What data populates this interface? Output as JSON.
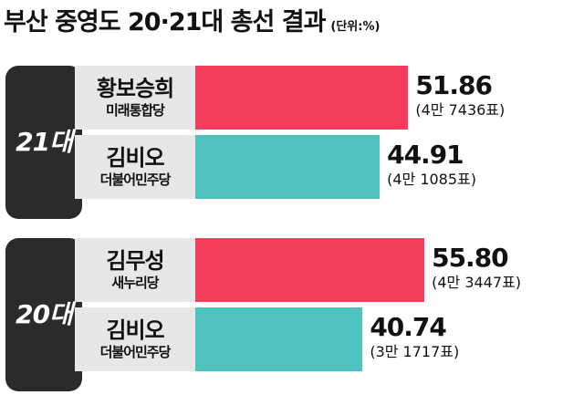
{
  "title": "부산 중영도 20·21대 총선 결과",
  "unit": "(단위:%)",
  "colors": {
    "winner": "#f23d5c",
    "loser": "#4fc1bf",
    "year_tab": "#2b2b2b",
    "name_bg": "#e7e7e7"
  },
  "chart_data": [
    {
      "type": "bar",
      "orientation": "horizontal",
      "election": "21대",
      "categories": [
        "황보승희",
        "김비오"
      ],
      "parties": [
        "미래통합당",
        "더불어민주당"
      ],
      "values": [
        51.86,
        44.91
      ],
      "value_labels": [
        "51.86",
        "44.91"
      ],
      "votes": [
        "(4만 7436표)",
        "(4만 1085표)"
      ],
      "color_keys": [
        "winner",
        "loser"
      ]
    },
    {
      "type": "bar",
      "orientation": "horizontal",
      "election": "20대",
      "categories": [
        "김무성",
        "김비오"
      ],
      "parties": [
        "새누리당",
        "더불어민주당"
      ],
      "values": [
        55.8,
        40.74
      ],
      "value_labels": [
        "55.80",
        "40.74"
      ],
      "votes": [
        "(4만 3447표)",
        "(3만 1717표)"
      ],
      "color_keys": [
        "winner",
        "loser"
      ]
    }
  ]
}
